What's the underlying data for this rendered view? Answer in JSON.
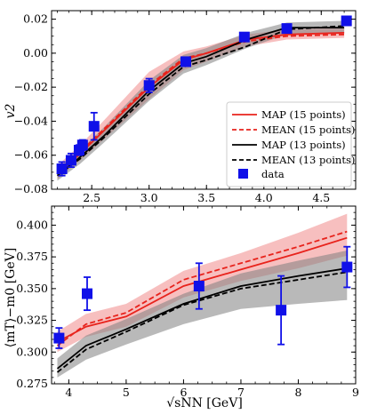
{
  "chart_data": [
    {
      "type": "line",
      "ylabel": "v2",
      "xlim": [
        2.15,
        4.8
      ],
      "ylim": [
        -0.08,
        0.025
      ],
      "xticks": [
        "2.5",
        "3.0",
        "3.5",
        "4.0",
        "4.5"
      ],
      "yticks": [
        "0.02",
        "0.00",
        "−0.02",
        "−0.04",
        "−0.06",
        "−0.08"
      ],
      "legend_position": "lower-right",
      "grid": false,
      "legend": [
        {
          "label": "MAP (15 points)",
          "color": "#e8231c",
          "dash": "solid"
        },
        {
          "label": "MEAN (15 points)",
          "color": "#e8231c",
          "dash": "dashed"
        },
        {
          "label": "MAP (13 points)",
          "color": "#000000",
          "dash": "solid"
        },
        {
          "label": "MEAN (13 points)",
          "color": "#000000",
          "dash": "dashed"
        },
        {
          "label": "data",
          "color": "#1010e8",
          "marker": "square"
        }
      ],
      "x": [
        2.2,
        2.4,
        2.6,
        3.0,
        3.3,
        3.5,
        3.85,
        4.2,
        4.7
      ],
      "series": [
        {
          "name": "MAP (15 points)",
          "color": "#e8231c",
          "dash": "solid",
          "values": [
            -0.071,
            -0.059,
            -0.046,
            -0.02,
            -0.004,
            0.0,
            0.008,
            0.011,
            0.012
          ]
        },
        {
          "name": "MEAN (15 points)",
          "color": "#e8231c",
          "dash": "dashed",
          "values": [
            -0.07,
            -0.058,
            -0.045,
            -0.019,
            -0.003,
            0.0,
            0.007,
            0.01,
            0.011
          ]
        },
        {
          "name": "MAP (13 points)",
          "color": "#000000",
          "dash": "solid",
          "values": [
            -0.072,
            -0.061,
            -0.049,
            -0.022,
            -0.006,
            -0.002,
            0.008,
            0.015,
            0.015
          ]
        },
        {
          "name": "MEAN (13 points)",
          "color": "#000000",
          "dash": "dashed",
          "values": [
            -0.072,
            -0.062,
            -0.05,
            -0.024,
            -0.008,
            -0.004,
            0.004,
            0.014,
            0.016
          ]
        }
      ],
      "bands": [
        {
          "color": "#f08a8a",
          "opacity": 0.55,
          "x": [
            2.2,
            2.4,
            2.6,
            3.0,
            3.3,
            3.5,
            3.85,
            4.2,
            4.7
          ],
          "lower": [
            -0.074,
            -0.063,
            -0.051,
            -0.027,
            -0.01,
            -0.005,
            0.004,
            0.008,
            0.009
          ],
          "upper": [
            -0.066,
            -0.054,
            -0.04,
            -0.011,
            0.001,
            0.004,
            0.011,
            0.014,
            0.015
          ]
        },
        {
          "color": "#7f7f7f",
          "opacity": 0.55,
          "x": [
            2.2,
            2.4,
            2.6,
            3.0,
            3.3,
            3.5,
            3.85,
            4.2,
            4.7
          ],
          "lower": [
            -0.075,
            -0.065,
            -0.053,
            -0.028,
            -0.012,
            -0.007,
            0.003,
            0.011,
            0.012
          ],
          "upper": [
            -0.068,
            -0.057,
            -0.044,
            -0.016,
            -0.001,
            0.003,
            0.012,
            0.018,
            0.019
          ]
        }
      ],
      "data_points": [
        {
          "x": 2.24,
          "y": -0.068,
          "err": 0.004
        },
        {
          "x": 2.32,
          "y": -0.063,
          "err": 0.004
        },
        {
          "x": 2.39,
          "y": -0.057,
          "err": 0.003
        },
        {
          "x": 2.42,
          "y": -0.054,
          "err": 0.003
        },
        {
          "x": 2.52,
          "y": -0.043,
          "err": 0.008
        },
        {
          "x": 3.0,
          "y": -0.019,
          "err": 0.004
        },
        {
          "x": 3.32,
          "y": -0.005,
          "err": 0.001
        },
        {
          "x": 3.83,
          "y": 0.0095,
          "err": 0.001
        },
        {
          "x": 4.2,
          "y": 0.0145,
          "err": 0.001
        },
        {
          "x": 4.72,
          "y": 0.019,
          "err": 0.001
        }
      ]
    },
    {
      "type": "line",
      "ylabel": "⟨mT⟩−m0 [GeV]",
      "xlabel": "√sNN [GeV]",
      "xlim": [
        3.7,
        9.0
      ],
      "ylim": [
        0.275,
        0.415
      ],
      "xticks": [
        "4",
        "5",
        "6",
        "7",
        "8",
        "9"
      ],
      "yticks": [
        "0.400",
        "0.375",
        "0.350",
        "0.325",
        "0.300",
        "0.275"
      ],
      "grid": false,
      "x": [
        3.8,
        4.3,
        5.0,
        6.0,
        7.0,
        8.0,
        8.85
      ],
      "series": [
        {
          "name": "MAP (15 points)",
          "color": "#e8231c",
          "dash": "solid",
          "values": [
            0.308,
            0.32,
            0.328,
            0.352,
            0.365,
            0.378,
            0.39
          ]
        },
        {
          "name": "MEAN (15 points)",
          "color": "#e8231c",
          "dash": "dashed",
          "values": [
            0.305,
            0.322,
            0.331,
            0.357,
            0.37,
            0.383,
            0.395
          ]
        },
        {
          "name": "MAP (13 points)",
          "color": "#000000",
          "dash": "solid",
          "values": [
            0.287,
            0.305,
            0.318,
            0.338,
            0.352,
            0.36,
            0.366
          ]
        },
        {
          "name": "MEAN (13 points)",
          "color": "#000000",
          "dash": "dashed",
          "values": [
            0.284,
            0.302,
            0.316,
            0.337,
            0.35,
            0.357,
            0.363
          ]
        }
      ],
      "bands": [
        {
          "color": "#f08a8a",
          "opacity": 0.55,
          "x": [
            3.8,
            4.3,
            5.0,
            6.0,
            7.0,
            8.0,
            8.85
          ],
          "lower": [
            0.3,
            0.312,
            0.32,
            0.343,
            0.356,
            0.366,
            0.376
          ],
          "upper": [
            0.316,
            0.33,
            0.338,
            0.364,
            0.378,
            0.394,
            0.409
          ]
        },
        {
          "color": "#7f7f7f",
          "opacity": 0.55,
          "x": [
            3.8,
            4.3,
            5.0,
            6.0,
            7.0,
            8.0,
            8.85
          ],
          "lower": [
            0.28,
            0.294,
            0.306,
            0.322,
            0.334,
            0.338,
            0.341
          ],
          "upper": [
            0.295,
            0.313,
            0.326,
            0.346,
            0.362,
            0.372,
            0.38
          ]
        }
      ],
      "data_points": [
        {
          "x": 3.83,
          "y": 0.311,
          "err": 0.008
        },
        {
          "x": 4.32,
          "y": 0.346,
          "err": 0.013
        },
        {
          "x": 6.27,
          "y": 0.352,
          "err": 0.018
        },
        {
          "x": 7.7,
          "y": 0.333,
          "err": 0.027
        },
        {
          "x": 8.85,
          "y": 0.367,
          "err": 0.016
        }
      ]
    }
  ]
}
